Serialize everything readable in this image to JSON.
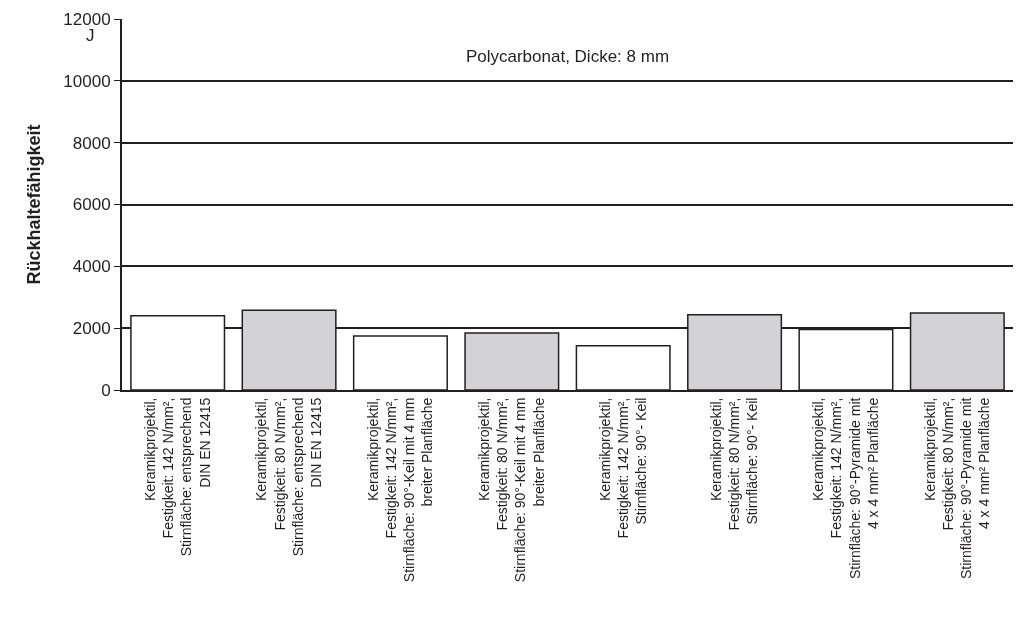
{
  "chart_data": {
    "type": "bar",
    "title": "Polycarbonat, Dicke: 8 mm",
    "ylabel": "Rückhaltefähigkeit",
    "annotations": [
      "J"
    ],
    "categories": [
      "Keramikprojektil,\nFestigkeit: 142 N/mm²,\nStirnfläche: entsprechend\nDIN EN 12415",
      "Keramikprojektil,\nFestigkeit: 80 N/mm²,\nStirnfläche: entsprechend\nDIN EN 12415",
      "Keramikprojektil,\nFestigkeit: 142 N/mm²,\nStirnfläche: 90°-Keil mit 4 mm\nbreiter Planfläche",
      "Keramikprojektil,\nFestigkeit: 80 N/mm²,\nStirnfläche: 90°-Keil mit 4 mm\nbreiter Planfläche",
      "Keramikprojektil,\nFestigkeit: 142 N/mm²,\nStirnfläche: 90°- Keil",
      "Keramikprojektil,\nFestigkeit: 80 N/mm²,\nStirnfläche: 90°- Keil",
      "Keramikprojektil,\nFestigkeit: 142 N/mm²,\nStirnfläche: 90°-Pyramide mit\n4 x 4 mm² Planfläche",
      "Keramikprojektil,\nFestigkeit: 80 N/mm²,\nStirnfläche: 90°-Pyramide mit\n4 x 4 mm² Planfläche"
    ],
    "values": [
      2400,
      2580,
      1750,
      1840,
      1430,
      2430,
      1960,
      2490
    ],
    "colors": [
      "#ffffff",
      "#d3d3d5",
      "#ffffff",
      "#d3d3d5",
      "#ffffff",
      "#d3d3d5",
      "#ffffff",
      "#d3d3d5"
    ],
    "ylim": [
      0,
      12000
    ],
    "yticks": [
      0,
      2000,
      4000,
      6000,
      8000,
      10000,
      12000
    ],
    "grid": "y"
  }
}
